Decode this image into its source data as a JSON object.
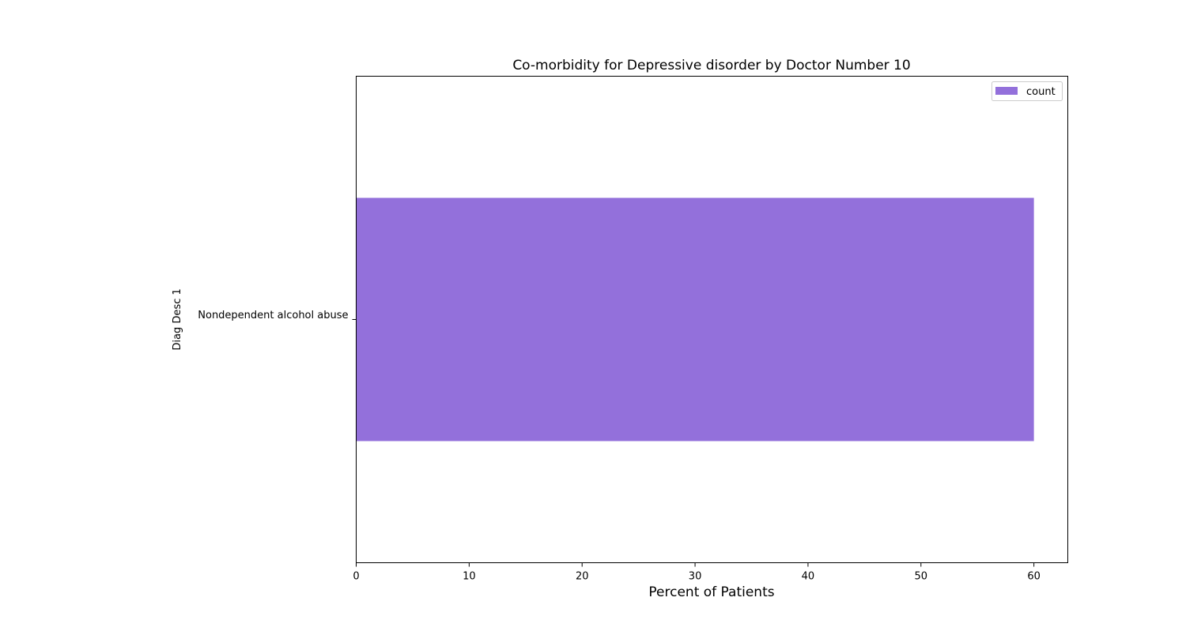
{
  "chart_data": {
    "type": "bar",
    "orientation": "horizontal",
    "title": "Co-morbidity for Depressive disorder by Doctor Number 10",
    "xlabel": "Percent of Patients",
    "ylabel": "Diag Desc 1",
    "categories": [
      "Nondependent alcohol abuse"
    ],
    "series": [
      {
        "name": "count",
        "values": [
          60
        ],
        "color": "#9370db"
      }
    ],
    "xlim": [
      0,
      63
    ],
    "xticks": [
      0,
      10,
      20,
      30,
      40,
      50,
      60
    ],
    "grid": false,
    "legend": "top-right"
  }
}
